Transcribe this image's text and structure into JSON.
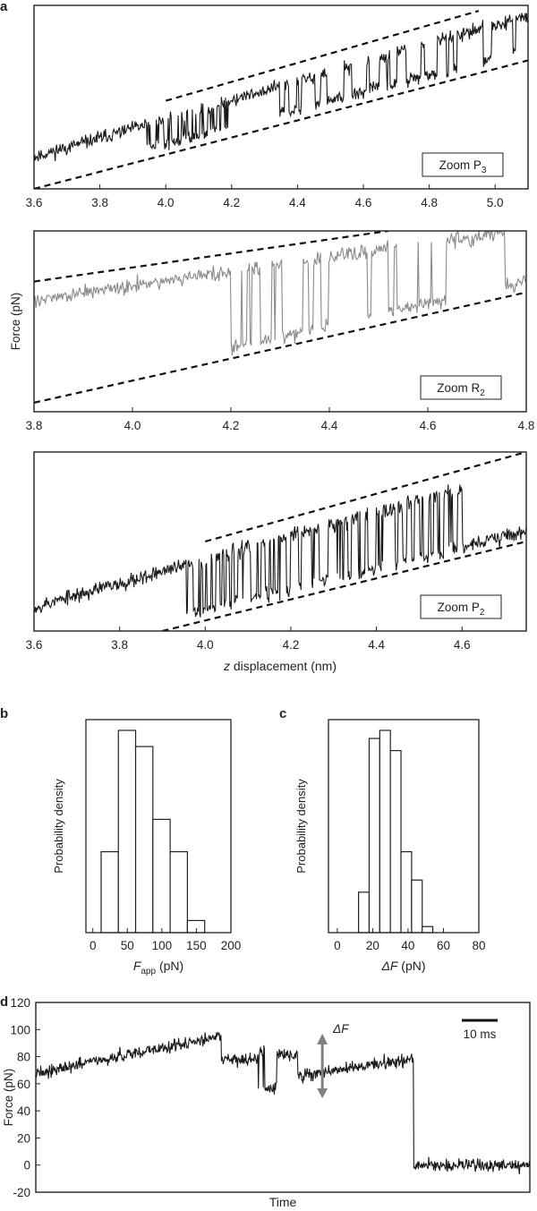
{
  "panel_labels": {
    "a": "a",
    "b": "b",
    "c": "c",
    "d": "d"
  },
  "chart_data": [
    {
      "id": "a1",
      "type": "line",
      "xlabel": "",
      "ylabel": "",
      "xlim": [
        3.6,
        5.1
      ],
      "ylim": [
        0,
        1
      ],
      "x_ticks": [
        3.6,
        3.8,
        4.0,
        4.2,
        4.4,
        4.6,
        4.8,
        5.0
      ],
      "x_tick_labels": [
        "3.6",
        "3.8",
        "4.0",
        "4.2",
        "4.4",
        "4.6",
        "4.8",
        "5.0"
      ],
      "annotation": {
        "text": "Zoom P",
        "subscript": "3"
      },
      "trace": {
        "seed": 11,
        "n": 700,
        "color": "#1a1a1a",
        "noise": 0.035,
        "segments": [
          {
            "x0": 3.6,
            "x1": 3.93,
            "base": "upper"
          },
          {
            "x0": 3.93,
            "x1": 4.2,
            "base": "upper",
            "flicker": 0.42,
            "toward": "lower"
          },
          {
            "x0": 4.2,
            "x1": 4.34,
            "base": "upper"
          },
          {
            "x0": 4.34,
            "x1": 5.1,
            "base": "lower",
            "flicker": 0.08,
            "toward": "upper"
          }
        ]
      },
      "dashed_lines": [
        {
          "name": "upper-fit",
          "x": [
            4.0,
            4.95
          ],
          "y": [
            0.48,
            0.97
          ]
        },
        {
          "name": "lower-fit",
          "x": [
            3.6,
            5.1
          ],
          "y": [
            0.0,
            0.7
          ]
        }
      ]
    },
    {
      "id": "a2",
      "type": "line",
      "xlabel": "",
      "ylabel": "Force (pN)",
      "xlim": [
        3.8,
        4.8
      ],
      "ylim": [
        0,
        1
      ],
      "x_ticks": [
        3.8,
        4.0,
        4.2,
        4.4,
        4.6,
        4.8
      ],
      "x_tick_labels": [
        "3.8",
        "4.0",
        "4.2",
        "4.4",
        "4.6",
        "4.8"
      ],
      "annotation": {
        "text": "Zoom R",
        "subscript": "2"
      },
      "trace": {
        "seed": 27,
        "n": 520,
        "color": "#8a8a8a",
        "noise": 0.04,
        "segments": [
          {
            "x0": 3.8,
            "x1": 4.2,
            "base": "upper"
          },
          {
            "x0": 4.2,
            "x1": 4.4,
            "base": "lower",
            "flicker": 0.16,
            "toward": "upper"
          },
          {
            "x0": 4.4,
            "x1": 4.8,
            "base": "lower",
            "flicker": 0.04,
            "toward": "upper"
          }
        ]
      },
      "dashed_lines": [
        {
          "name": "upper-fit",
          "x": [
            3.8,
            4.52
          ],
          "y": [
            0.72,
            1.0
          ]
        },
        {
          "name": "lower-fit",
          "x": [
            3.8,
            4.8
          ],
          "y": [
            0.05,
            0.66
          ]
        }
      ]
    },
    {
      "id": "a3",
      "type": "line",
      "xlabel": "z displacement (nm)",
      "ylabel": "",
      "xlim": [
        3.6,
        4.75
      ],
      "ylim": [
        0,
        1
      ],
      "x_ticks": [
        3.6,
        3.8,
        4.0,
        4.2,
        4.4,
        4.6
      ],
      "x_tick_labels": [
        "3.6",
        "3.8",
        "4.0",
        "4.2",
        "4.4",
        "4.6"
      ],
      "annotation": {
        "text": "Zoom P",
        "subscript": "2"
      },
      "trace": {
        "seed": 53,
        "n": 720,
        "color": "#1a1a1a",
        "noise": 0.04,
        "segments": [
          {
            "x0": 3.6,
            "x1": 3.95,
            "base": "upper"
          },
          {
            "x0": 3.95,
            "x1": 4.6,
            "base": "upper",
            "flicker": 0.22,
            "toward": "lower"
          },
          {
            "x0": 4.6,
            "x1": 4.75,
            "base": "lower"
          }
        ]
      },
      "dashed_lines": [
        {
          "name": "upper-fit",
          "x": [
            4.0,
            4.75
          ],
          "y": [
            0.5,
            1.0
          ]
        },
        {
          "name": "lower-fit",
          "x": [
            3.9,
            4.75
          ],
          "y": [
            0.0,
            0.5
          ]
        }
      ]
    },
    {
      "id": "b",
      "type": "bar",
      "xlabel": "F",
      "xlabel_sub": "app",
      "xlabel_unit": " (pN)",
      "ylabel": "Probability density",
      "xlim": [
        -10,
        200
      ],
      "ylim": [
        0,
        1
      ],
      "x_ticks": [
        0,
        50,
        100,
        150,
        200
      ],
      "x_tick_labels": [
        "0",
        "50",
        "100",
        "150",
        "200"
      ],
      "bin_edges": [
        12,
        37,
        62,
        87,
        112,
        137,
        162
      ],
      "values": [
        0.4,
        1.0,
        0.92,
        0.56,
        0.4,
        0.06,
        0.02
      ]
    },
    {
      "id": "c",
      "type": "bar",
      "xlabel": "ΔF",
      "xlabel_sub": "",
      "xlabel_unit": " (pN)",
      "ylabel": "Probability density",
      "xlim": [
        -5,
        80
      ],
      "ylim": [
        0,
        1
      ],
      "x_ticks": [
        0,
        20,
        40,
        60,
        80
      ],
      "x_tick_labels": [
        "0",
        "20",
        "40",
        "60",
        "80"
      ],
      "bin_edges": [
        12,
        18,
        24,
        30,
        36,
        42,
        48,
        54
      ],
      "values": [
        0.2,
        0.96,
        1.0,
        0.9,
        0.4,
        0.26,
        0.03
      ]
    },
    {
      "id": "d",
      "type": "line",
      "xlabel": "Time",
      "ylabel": "Force (pN)",
      "xlim": [
        0,
        100
      ],
      "ylim": [
        -20,
        120
      ],
      "y_ticks": [
        -20,
        0,
        20,
        40,
        60,
        80,
        100,
        120
      ],
      "y_tick_labels": [
        "-20",
        "0",
        "20",
        "40",
        "60",
        "80",
        "100",
        "120"
      ],
      "scale_bar": "10 ms",
      "delta_label": "ΔF",
      "delta_arrow": {
        "x": 58,
        "y_from": 52,
        "y_to": 95
      },
      "trace": {
        "seed": 91,
        "n": 900,
        "color": "#1a1a1a",
        "noise": 4.5,
        "segments": [
          {
            "x0": 0,
            "x1": 37.5,
            "y0": 68,
            "y1": 95
          },
          {
            "x0": 37.5,
            "x1": 45,
            "y0": 78,
            "y1": 78
          },
          {
            "x0": 45,
            "x1": 53,
            "y0": 57,
            "y1": 57,
            "flicker": 0.25,
            "jump": 25
          },
          {
            "x0": 53,
            "x1": 76.5,
            "y0": 66,
            "y1": 78
          },
          {
            "x0": 76.5,
            "x1": 100,
            "y0": 0,
            "y1": 0
          }
        ]
      }
    }
  ]
}
